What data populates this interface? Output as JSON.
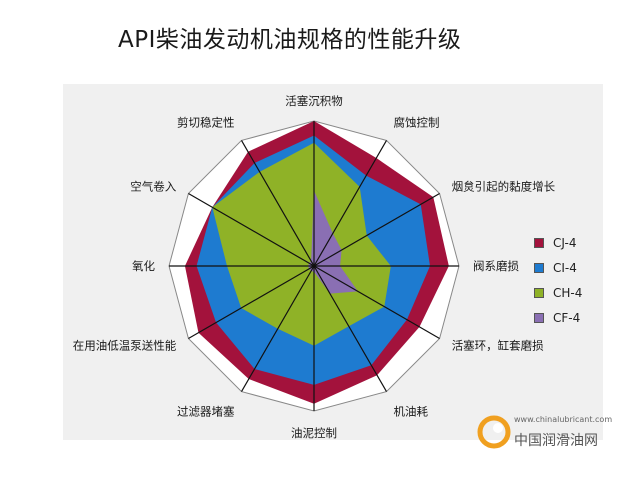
{
  "title": "API柴油发动机油规格的性能升级",
  "chart_data": {
    "type": "radar",
    "axes": [
      "活塞沉积物",
      "腐蚀控制",
      "烟炱引起的黏度增长",
      "阀系磨损",
      "活塞环，缸套磨损",
      "机油耗",
      "油泥控制",
      "过滤器堵塞",
      "在用油低温泵送性能",
      "氧化",
      "空气卷入",
      "剪切稳定性"
    ],
    "range": [
      0,
      1
    ],
    "series": [
      {
        "name": "CJ-4",
        "color": "#a3123c",
        "values": [
          1.0,
          0.86,
          0.95,
          0.93,
          0.84,
          0.87,
          0.95,
          0.9,
          0.92,
          0.89,
          0.81,
          0.91
        ]
      },
      {
        "name": "CI-4",
        "color": "#1e7bd0",
        "values": [
          0.9,
          0.72,
          0.85,
          0.8,
          0.74,
          0.79,
          0.82,
          0.82,
          0.78,
          0.81,
          0.81,
          0.82
        ]
      },
      {
        "name": "CH-4",
        "color": "#8fb227",
        "values": [
          0.85,
          0.63,
          0.42,
          0.53,
          0.56,
          0.48,
          0.55,
          0.5,
          0.58,
          0.6,
          0.81,
          0.75
        ]
      },
      {
        "name": "CF-4",
        "color": "#8a6fb3",
        "values": [
          0.52,
          0.26,
          0.22,
          0.18,
          0.35,
          0.22,
          0.04,
          0.04,
          0.04,
          0.04,
          0.04,
          0.04
        ]
      }
    ],
    "legend_position": "right"
  },
  "watermark": {
    "url": "www.chinalubricant.com",
    "name": "中国润滑油网"
  }
}
